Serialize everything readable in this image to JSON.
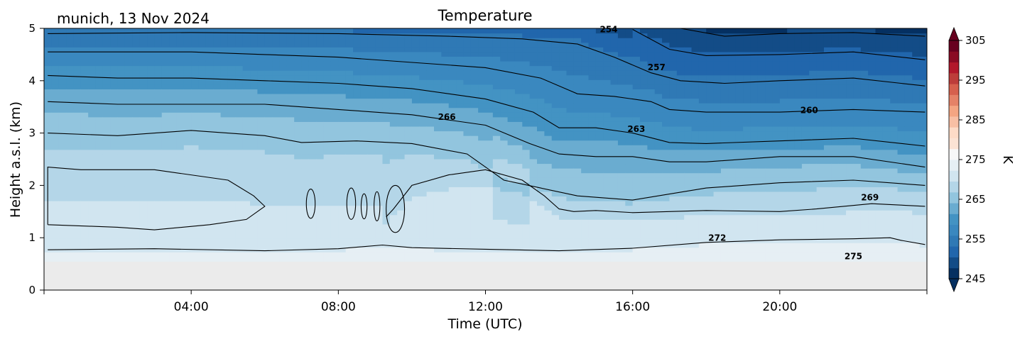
{
  "chart_data": {
    "type": "heatmap",
    "location_date": "munich, 13 Nov 2024",
    "title": "Temperature",
    "xlabel": "Time (UTC)",
    "ylabel": "Height a.s.l. (km)",
    "x_ticks": [
      "04:00",
      "08:00",
      "12:00",
      "16:00",
      "20:00"
    ],
    "x_tick_hours": [
      4,
      8,
      12,
      16,
      20
    ],
    "xlim_hours": [
      0,
      24
    ],
    "y_ticks": [
      "0",
      "1",
      "2",
      "3",
      "4",
      "5"
    ],
    "y_tick_values": [
      0,
      1,
      2,
      3,
      4,
      5
    ],
    "ylim_km": [
      0,
      5
    ],
    "ground_level_km": 0.55,
    "colorbar": {
      "label": "K",
      "range": [
        245,
        305
      ],
      "ticks": [
        "305",
        "295",
        "285",
        "275",
        "265",
        "255",
        "245"
      ],
      "tick_values": [
        305,
        295,
        285,
        275,
        265,
        255,
        245
      ],
      "colors_low_to_high": [
        "#053061",
        "#134c87",
        "#2166ac",
        "#2f79b5",
        "#3a88bf",
        "#4393c3",
        "#6aacd0",
        "#92c5de",
        "#b4d6e8",
        "#d1e5f0",
        "#e6eff4",
        "#f7f7f7",
        "#fbe3d4",
        "#fddbc7",
        "#f8bfa4",
        "#f4a582",
        "#e58267",
        "#d6604d",
        "#bd3d3a",
        "#b2182b",
        "#8a0b24",
        "#67001f"
      ]
    },
    "contour_levels": [
      254,
      257,
      260,
      263,
      266,
      269,
      272,
      275
    ],
    "contour_labels": [
      {
        "text": "254",
        "t": 15.35,
        "h": 4.97
      },
      {
        "text": "257",
        "t": 16.65,
        "h": 4.25
      },
      {
        "text": "260",
        "t": 20.8,
        "h": 3.43
      },
      {
        "text": "263",
        "t": 16.1,
        "h": 3.07
      },
      {
        "text": "266",
        "t": 10.95,
        "h": 3.3
      },
      {
        "text": "269",
        "t": 22.45,
        "h": 1.76
      },
      {
        "text": "272",
        "t": 18.3,
        "h": 0.99
      },
      {
        "text": "275",
        "t": 22.0,
        "h": 0.64
      }
    ],
    "isotherms": [
      {
        "level": 272,
        "points": [
          [
            0.1,
            0.77
          ],
          [
            3,
            0.79
          ],
          [
            6,
            0.75
          ],
          [
            8,
            0.79
          ],
          [
            9.2,
            0.86
          ],
          [
            10,
            0.81
          ],
          [
            12,
            0.78
          ],
          [
            14,
            0.75
          ],
          [
            16,
            0.8
          ],
          [
            18,
            0.91
          ],
          [
            20,
            0.96
          ],
          [
            22,
            0.98
          ],
          [
            23,
            1.0
          ],
          [
            23.3,
            0.95
          ],
          [
            23.95,
            0.87
          ]
        ]
      },
      {
        "level": 269,
        "points": [
          [
            0.1,
            1.25
          ],
          [
            2,
            1.2
          ],
          [
            3,
            1.15
          ],
          [
            4.5,
            1.25
          ],
          [
            5.5,
            1.35
          ],
          [
            6,
            1.6
          ],
          [
            5.7,
            1.8
          ],
          [
            5,
            2.1
          ],
          [
            3,
            2.3
          ],
          [
            1,
            2.3
          ],
          [
            0.1,
            2.35
          ],
          [
            0.1,
            1.25
          ]
        ]
      },
      {
        "level": 269,
        "points": [
          [
            9.3,
            1.4
          ],
          [
            9.5,
            1.55
          ],
          [
            10,
            2.0
          ],
          [
            11,
            2.2
          ],
          [
            12,
            2.3
          ],
          [
            13,
            2.1
          ],
          [
            13.6,
            1.8
          ],
          [
            14,
            1.55
          ],
          [
            14.4,
            1.5
          ],
          [
            15,
            1.52
          ],
          [
            16,
            1.48
          ],
          [
            18,
            1.52
          ],
          [
            20,
            1.5
          ],
          [
            21,
            1.55
          ],
          [
            22.5,
            1.65
          ],
          [
            23.95,
            1.6
          ]
        ]
      },
      {
        "level": 266,
        "points": [
          [
            0.1,
            3.0
          ],
          [
            2,
            2.95
          ],
          [
            4,
            3.05
          ],
          [
            6,
            2.95
          ],
          [
            7,
            2.82
          ],
          [
            8.5,
            2.85
          ],
          [
            10,
            2.8
          ],
          [
            11.5,
            2.6
          ],
          [
            12.5,
            2.1
          ],
          [
            13.5,
            1.95
          ],
          [
            14.5,
            1.8
          ],
          [
            16,
            1.72
          ],
          [
            18,
            1.95
          ],
          [
            20,
            2.05
          ],
          [
            22,
            2.1
          ],
          [
            23.95,
            2.0
          ]
        ]
      },
      {
        "level": 263,
        "points": [
          [
            0.1,
            3.6
          ],
          [
            2,
            3.55
          ],
          [
            4,
            3.55
          ],
          [
            6,
            3.55
          ],
          [
            8,
            3.45
          ],
          [
            10,
            3.35
          ],
          [
            12,
            3.15
          ],
          [
            13.2,
            2.8
          ],
          [
            14,
            2.6
          ],
          [
            15,
            2.55
          ],
          [
            16,
            2.55
          ],
          [
            17,
            2.45
          ],
          [
            18,
            2.45
          ],
          [
            20,
            2.55
          ],
          [
            22,
            2.55
          ],
          [
            23.95,
            2.35
          ]
        ]
      },
      {
        "level": 260,
        "points": [
          [
            0.1,
            4.1
          ],
          [
            2,
            4.05
          ],
          [
            4,
            4.05
          ],
          [
            6,
            4.0
          ],
          [
            8,
            3.95
          ],
          [
            10,
            3.85
          ],
          [
            12,
            3.65
          ],
          [
            13.3,
            3.4
          ],
          [
            14,
            3.1
          ],
          [
            15,
            3.1
          ],
          [
            16,
            3.0
          ],
          [
            17,
            2.82
          ],
          [
            18,
            2.8
          ],
          [
            20,
            2.85
          ],
          [
            22,
            2.9
          ],
          [
            23.95,
            2.75
          ]
        ]
      },
      {
        "level": 257,
        "points": [
          [
            0.1,
            4.55
          ],
          [
            2,
            4.55
          ],
          [
            4,
            4.55
          ],
          [
            6,
            4.5
          ],
          [
            8,
            4.45
          ],
          [
            10,
            4.35
          ],
          [
            12,
            4.25
          ],
          [
            13.5,
            4.05
          ],
          [
            14.5,
            3.75
          ],
          [
            15.5,
            3.7
          ],
          [
            16.5,
            3.6
          ],
          [
            17,
            3.45
          ],
          [
            18,
            3.4
          ],
          [
            20,
            3.4
          ],
          [
            22,
            3.45
          ],
          [
            23.95,
            3.4
          ]
        ]
      },
      {
        "level": 254,
        "points": [
          [
            0.1,
            4.9
          ],
          [
            4,
            4.92
          ],
          [
            8,
            4.9
          ],
          [
            11,
            4.85
          ],
          [
            13,
            4.8
          ],
          [
            14.5,
            4.7
          ],
          [
            15.5,
            4.45
          ],
          [
            16.5,
            4.15
          ],
          [
            17.3,
            4.0
          ],
          [
            18.5,
            3.95
          ],
          [
            20,
            4.0
          ],
          [
            22,
            4.05
          ],
          [
            23.95,
            3.9
          ]
        ]
      },
      {
        "level": 251,
        "points": [
          [
            16,
            4.98
          ],
          [
            17,
            4.6
          ],
          [
            18,
            4.48
          ],
          [
            20,
            4.5
          ],
          [
            22,
            4.55
          ],
          [
            23.95,
            4.4
          ]
        ]
      },
      {
        "level": 248,
        "points": [
          [
            17.3,
            5.0
          ],
          [
            18.5,
            4.85
          ],
          [
            20,
            4.9
          ],
          [
            22,
            4.92
          ],
          [
            23.95,
            4.85
          ]
        ]
      }
    ],
    "closed_contours": [
      {
        "t": 7.25,
        "h": 1.65,
        "rt": 0.12,
        "rh": 0.28
      },
      {
        "t": 8.35,
        "h": 1.65,
        "rt": 0.12,
        "rh": 0.3
      },
      {
        "t": 8.7,
        "h": 1.6,
        "rt": 0.08,
        "rh": 0.24
      },
      {
        "t": 9.05,
        "h": 1.6,
        "rt": 0.08,
        "rh": 0.28
      },
      {
        "t": 9.55,
        "h": 1.55,
        "rt": 0.25,
        "rh": 0.45
      }
    ]
  }
}
